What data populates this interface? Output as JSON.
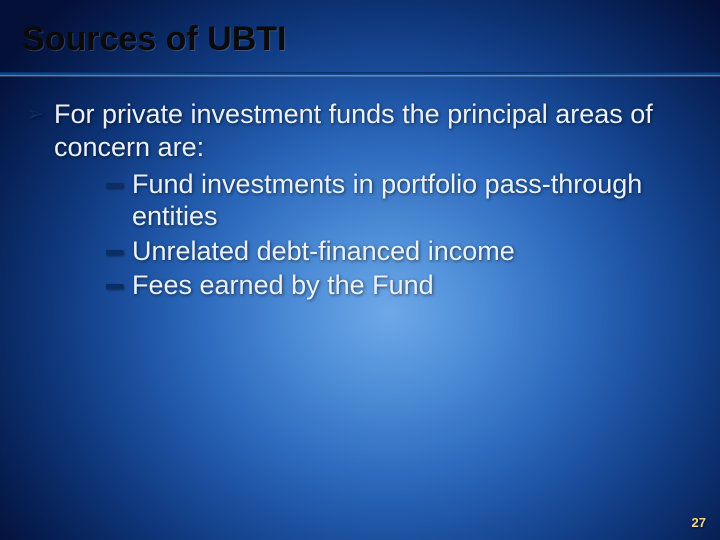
{
  "slide": {
    "title": "Sources of UBTI",
    "page_number": "27",
    "colors": {
      "title_color": "#0a0a0a",
      "body_text_color": "#eaf1fb",
      "bullet_dash_color": "#0b2e66",
      "chevron_color": "#0b2e66",
      "page_number_color": "#f3d97a",
      "bg_center": "#6ea8e8",
      "bg_outer": "#041038"
    },
    "typography": {
      "title_fontsize_pt": 34,
      "body_fontsize_pt": 27,
      "pagenum_fontsize_pt": 13,
      "font_family": "Arial"
    },
    "bullets": {
      "lvl1": "For private investment funds the principal areas of concern are:",
      "lvl2": [
        "Fund investments in portfolio pass-through entities",
        "Unrelated debt-financed income",
        "Fees earned by the Fund"
      ]
    }
  }
}
